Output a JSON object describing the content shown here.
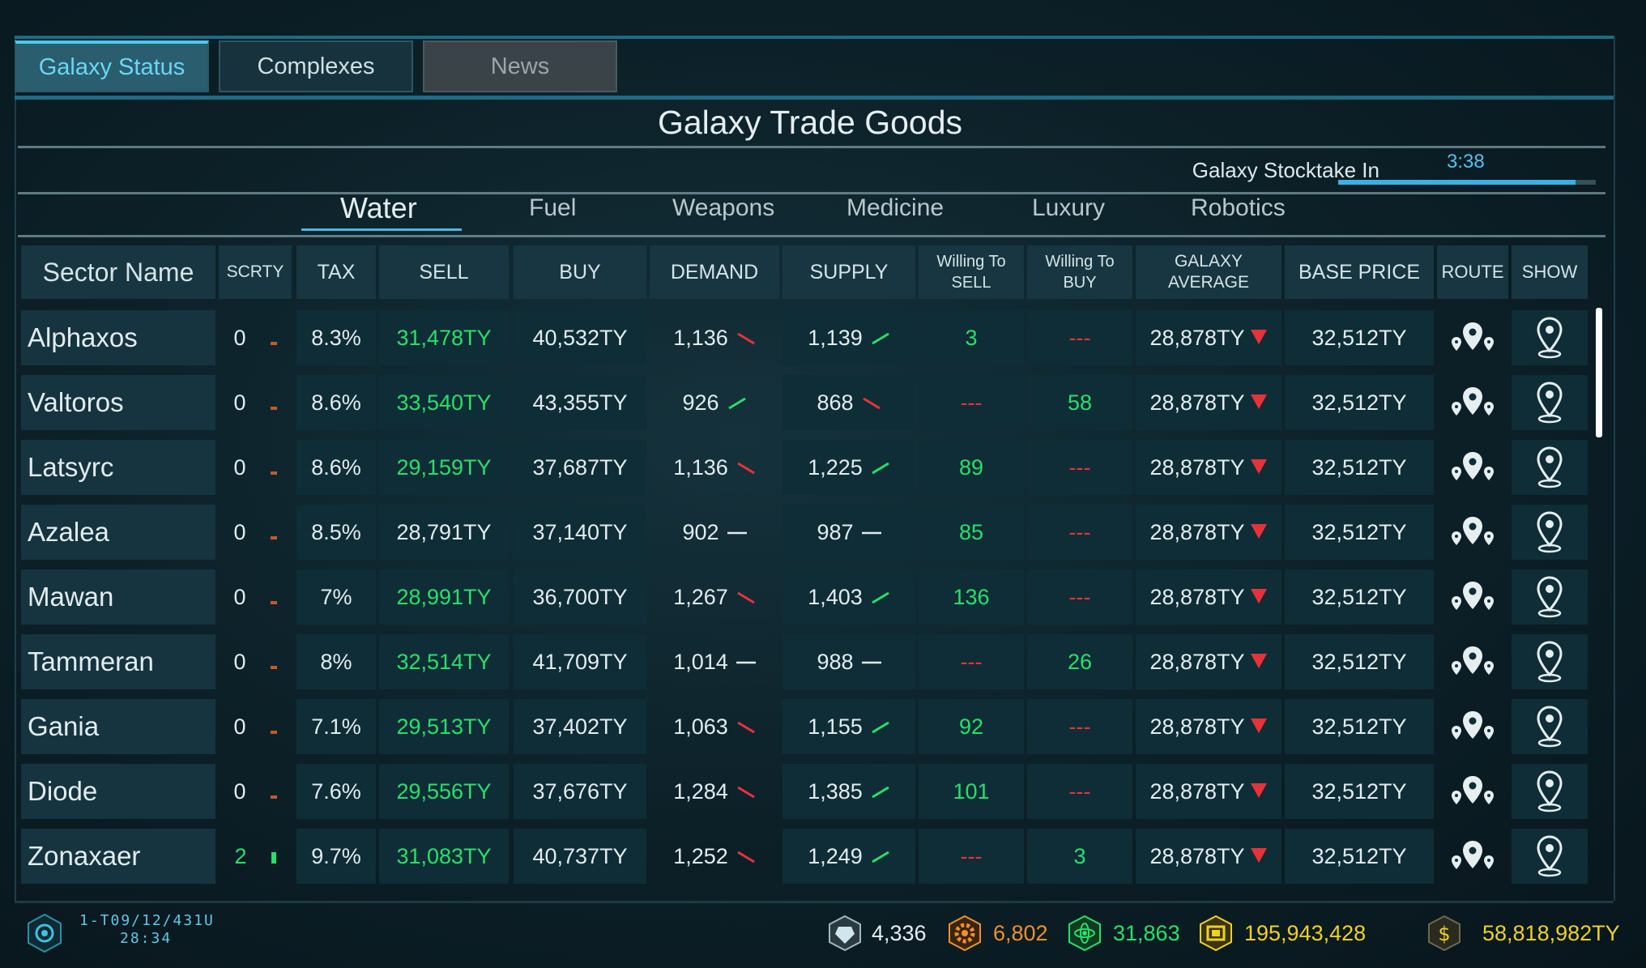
{
  "tabs": [
    {
      "label": "Galaxy Status",
      "active": true
    },
    {
      "label": "Complexes",
      "active": false
    },
    {
      "label": "News",
      "active": false
    }
  ],
  "title": "Galaxy Trade Goods",
  "stocktake": {
    "label": "Galaxy Stocktake  In",
    "time": "3:38",
    "progress": 0.92
  },
  "categories": [
    "Water",
    "Fuel",
    "Weapons",
    "Medicine",
    "Luxury",
    "Robotics"
  ],
  "active_category": "Water",
  "columns": {
    "sector": "Sector Name",
    "scrty": "SCRTY",
    "tax": "TAX",
    "sell": "SELL",
    "buy": "BUY",
    "demand": "DEMAND",
    "supply": "SUPPLY",
    "wts": "Willing To SELL",
    "wtb": "Willing To BUY",
    "avg": "GALAXY AVERAGE",
    "base": "BASE PRICE",
    "route": "ROUTE",
    "show": "SHOW"
  },
  "rows": [
    {
      "name": "Alphaxos",
      "scrty": "0",
      "tax": "8.3%",
      "sell": "31,478TY",
      "sell_green": true,
      "buy": "40,532TY",
      "demand": "1,136",
      "demand_trend": "down",
      "supply": "1,139",
      "supply_trend": "up",
      "wts": "3",
      "wtb": "---",
      "avg": "28,878TY",
      "base": "32,512TY"
    },
    {
      "name": "Valtoros",
      "scrty": "0",
      "tax": "8.6%",
      "sell": "33,540TY",
      "sell_green": true,
      "buy": "43,355TY",
      "demand": "926",
      "demand_trend": "up",
      "supply": "868",
      "supply_trend": "down",
      "wts": "---",
      "wtb": "58",
      "avg": "28,878TY",
      "base": "32,512TY"
    },
    {
      "name": "Latsyrc",
      "scrty": "0",
      "tax": "8.6%",
      "sell": "29,159TY",
      "sell_green": true,
      "buy": "37,687TY",
      "demand": "1,136",
      "demand_trend": "down",
      "supply": "1,225",
      "supply_trend": "up",
      "wts": "89",
      "wtb": "---",
      "avg": "28,878TY",
      "base": "32,512TY"
    },
    {
      "name": "Azalea",
      "scrty": "0",
      "tax": "8.5%",
      "sell": "28,791TY",
      "sell_green": false,
      "buy": "37,140TY",
      "demand": "902",
      "demand_trend": "flat",
      "supply": "987",
      "supply_trend": "flat",
      "wts": "85",
      "wtb": "---",
      "avg": "28,878TY",
      "base": "32,512TY"
    },
    {
      "name": "Mawan",
      "scrty": "0",
      "tax": "7%",
      "sell": "28,991TY",
      "sell_green": true,
      "buy": "36,700TY",
      "demand": "1,267",
      "demand_trend": "down",
      "supply": "1,403",
      "supply_trend": "up",
      "wts": "136",
      "wtb": "---",
      "avg": "28,878TY",
      "base": "32,512TY"
    },
    {
      "name": "Tammeran",
      "scrty": "0",
      "tax": "8%",
      "sell": "32,514TY",
      "sell_green": true,
      "buy": "41,709TY",
      "demand": "1,014",
      "demand_trend": "flat",
      "supply": "988",
      "supply_trend": "flat",
      "wts": "---",
      "wtb": "26",
      "avg": "28,878TY",
      "base": "32,512TY"
    },
    {
      "name": "Gania",
      "scrty": "0",
      "tax": "7.1%",
      "sell": "29,513TY",
      "sell_green": true,
      "buy": "37,402TY",
      "demand": "1,063",
      "demand_trend": "down",
      "supply": "1,155",
      "supply_trend": "up",
      "wts": "92",
      "wtb": "---",
      "avg": "28,878TY",
      "base": "32,512TY"
    },
    {
      "name": "Diode",
      "scrty": "0",
      "tax": "7.6%",
      "sell": "29,556TY",
      "sell_green": true,
      "buy": "37,676TY",
      "demand": "1,284",
      "demand_trend": "down",
      "supply": "1,385",
      "supply_trend": "up",
      "wts": "101",
      "wtb": "---",
      "avg": "28,878TY",
      "base": "32,512TY"
    },
    {
      "name": "Zonaxaer",
      "scrty": "2",
      "tax": "9.7%",
      "sell": "31,083TY",
      "sell_green": true,
      "buy": "40,737TY",
      "demand": "1,252",
      "demand_trend": "down",
      "supply": "1,249",
      "supply_trend": "up",
      "wts": "---",
      "wtb": "3",
      "avg": "28,878TY",
      "base": "32,512TY"
    }
  ],
  "status": {
    "date": "1-T09/12/431U",
    "time": "28:34",
    "res1": "4,336",
    "res2": "6,802",
    "res3": "31,863",
    "res4": "195,943,428",
    "credits": "58,818,982TY"
  },
  "colors": {
    "accent": "#4fc9ef",
    "green": "#27e06a",
    "red": "#e8323a",
    "orange": "#f0902a",
    "yellow": "#f0d21e"
  },
  "icons": {
    "route": "route-pins-icon",
    "show": "map-pin-icon",
    "trend_up": "trend-up-icon",
    "trend_down": "trend-down-icon",
    "avg_down": "red-down-triangle-icon"
  }
}
